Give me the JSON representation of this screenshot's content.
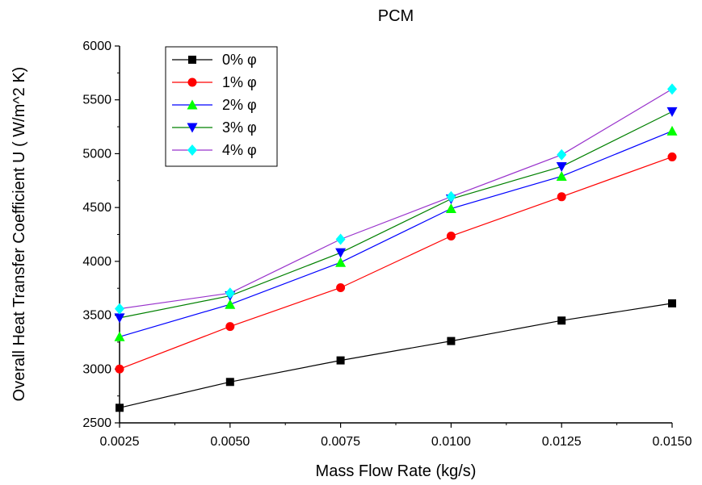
{
  "chart_data": {
    "type": "line",
    "title": "PCM",
    "xlabel": "Mass Flow Rate (kg/s)",
    "ylabel": "Overall Heat Transfer Coefficient U ( W/m^2 K)",
    "x": [
      0.0025,
      0.005,
      0.0075,
      0.01,
      0.0125,
      0.015
    ],
    "x_tick_labels": [
      "0.0025",
      "0.0050",
      "0.0075",
      "0.0100",
      "0.0125",
      "0.0150"
    ],
    "y_tick_labels": [
      "2500",
      "3000",
      "3500",
      "4000",
      "4500",
      "5000",
      "5500",
      "6000"
    ],
    "xlim": [
      0.0025,
      0.015
    ],
    "ylim": [
      2500,
      6000
    ],
    "grid": false,
    "legend_position": "top-left",
    "series": [
      {
        "name": "0% φ",
        "color": "#000000",
        "marker": "square",
        "values": [
          2640,
          2880,
          3080,
          3260,
          3450,
          3610
        ]
      },
      {
        "name": "1% φ",
        "color": "#ff0000",
        "marker": "circle",
        "values": [
          3000,
          3395,
          3755,
          4235,
          4600,
          4970
        ]
      },
      {
        "name": "2% φ",
        "color": "#0000ff",
        "marker": "triangle-down",
        "values": [
          3300,
          3600,
          3990,
          4490,
          4790,
          5210
        ]
      },
      {
        "name": "3% φ",
        "color": "#00cc00",
        "marker": "triangle-up",
        "values": [
          3475,
          3680,
          4080,
          4580,
          4880,
          5390
        ]
      },
      {
        "name": "4% φ",
        "color": "#9933cc",
        "marker": "diamond",
        "values": [
          3560,
          3705,
          4205,
          4600,
          4990,
          5600
        ]
      }
    ],
    "series_style": [
      {
        "line_color": "#000000",
        "marker_color": "#000000"
      },
      {
        "line_color": "#ff0000",
        "marker_color": "#ff0000"
      },
      {
        "line_color": "#0000ff",
        "marker_color": "#00ff00"
      },
      {
        "line_color": "#008000",
        "marker_color": "#0000ff"
      },
      {
        "line_color": "#9933cc",
        "marker_color": "#00ffff"
      }
    ]
  }
}
